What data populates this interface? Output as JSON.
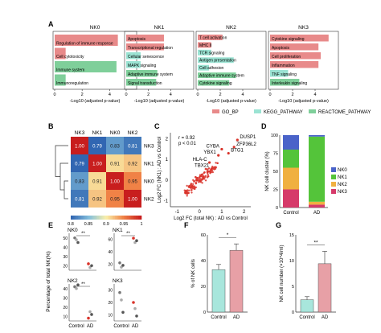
{
  "panel_letters": {
    "A": "A",
    "B": "B",
    "C": "C",
    "D": "D",
    "E": "E",
    "F": "F",
    "G": "G"
  },
  "colors": {
    "go": "#e88a8a",
    "kegg": "#9be3d3",
    "reactome": "#7fcf9a",
    "red": "#d9342b",
    "pink": "#e7a0a6",
    "teal": "#a8e6dc",
    "nk0": "#4a63c9",
    "nk1": "#54c43a",
    "nk2": "#f0b040",
    "nk3": "#d63a6a"
  },
  "panel_a": {
    "xlabel": "-Log10 (adjusted p-value)",
    "legend": [
      "GO_BP",
      "KEGG_PATHWAY",
      "REACTOME_PATHWAY"
    ],
    "ticks": [
      "0",
      "2",
      "4"
    ],
    "subpanels": [
      {
        "title": "NK0",
        "terms": [
          {
            "label": "Regulation of immune response",
            "value": 4.6,
            "db": "go"
          },
          {
            "label": "Cell cytotoxicity",
            "value": 0.8,
            "db": "go"
          },
          {
            "label": "Immune system",
            "value": 4.5,
            "db": "reactome"
          },
          {
            "label": "Immunoregulation",
            "value": 0.8,
            "db": "reactome"
          }
        ]
      },
      {
        "title": "NK1",
        "terms": [
          {
            "label": "Apoptosis",
            "value": 3.4,
            "db": "go"
          },
          {
            "label": "Transcriptional regulation",
            "value": 3.4,
            "db": "go"
          },
          {
            "label": "Cellular senescence",
            "value": 1.3,
            "db": "kegg"
          },
          {
            "label": "MAPK signaling",
            "value": 1.3,
            "db": "kegg"
          },
          {
            "label": "Adaptive immune system",
            "value": 2.8,
            "db": "reactome"
          },
          {
            "label": "Signal transduction",
            "value": 2.7,
            "db": "reactome"
          }
        ]
      },
      {
        "title": "NK2",
        "terms": [
          {
            "label": "T cell activation",
            "value": 2.2,
            "db": "go"
          },
          {
            "label": "MHC II",
            "value": 1.2,
            "db": "go"
          },
          {
            "label": "TCR signaling",
            "value": 1.2,
            "db": "kegg"
          },
          {
            "label": "Antigen presentation",
            "value": 3.2,
            "db": "kegg"
          },
          {
            "label": "Cell adhesion",
            "value": 1.0,
            "db": "kegg"
          },
          {
            "label": "Adaptive immune system",
            "value": 3.4,
            "db": "reactome"
          },
          {
            "label": "Cytokine signaling",
            "value": 2.8,
            "db": "reactome"
          }
        ]
      },
      {
        "title": "NK3",
        "terms": [
          {
            "label": "Cytokine signaling",
            "value": 5.2,
            "db": "go"
          },
          {
            "label": "Apoptosis",
            "value": 4.3,
            "db": "go"
          },
          {
            "label": "Cell proliferation",
            "value": 4.5,
            "db": "go"
          },
          {
            "label": "Inflammation",
            "value": 4.3,
            "db": "go"
          },
          {
            "label": "TNF signaling",
            "value": 1.6,
            "db": "kegg"
          },
          {
            "label": "Interleukin signaling",
            "value": 2.6,
            "db": "reactome"
          }
        ]
      }
    ]
  },
  "chart_data": [
    {
      "type": "heatmap",
      "panel": "B",
      "columns": [
        "NK3",
        "NK1",
        "NK0",
        "NK2"
      ],
      "rows": [
        "NK3",
        "NK1",
        "NK0",
        "NK2"
      ],
      "values": [
        [
          1.0,
          0.79,
          0.83,
          0.81
        ],
        [
          0.79,
          1.0,
          0.91,
          0.92
        ],
        [
          0.83,
          0.91,
          1.0,
          0.95
        ],
        [
          0.81,
          0.92,
          0.95,
          1.0
        ]
      ],
      "labels": [
        [
          "1.00",
          "0.79",
          "0.83",
          "0.81"
        ],
        [
          "0.79",
          "1.00",
          "0.91",
          "0.92"
        ],
        [
          "0.83",
          "0.91",
          "1.00",
          "0.95"
        ],
        [
          "0.81",
          "0.92",
          "0.95",
          "1.00"
        ]
      ],
      "colorbar_ticks": [
        "0.8",
        "0.85",
        "0.9",
        "0.95",
        "1"
      ]
    },
    {
      "type": "scatter",
      "panel": "C",
      "xlabel": "Log2 FC (total NK) : AD vs Control",
      "ylabel": "Log2 FC (NK1) : AD vs Control",
      "annotation": [
        "r = 0.92",
        "p < 0.01"
      ],
      "xticks": [
        "-1",
        "0",
        "1",
        "2"
      ],
      "yticks": [
        "-1",
        "0",
        "1",
        "2"
      ],
      "xlim": [
        -1.3,
        2.3
      ],
      "ylim": [
        -1.3,
        2.3
      ],
      "labeled_points": [
        {
          "label": "DUSP1",
          "x": 1.7,
          "y": 1.95
        },
        {
          "label": "ZFP36L2",
          "x": 1.55,
          "y": 1.6
        },
        {
          "label": "CYBA",
          "x": 1.0,
          "y": 1.5
        },
        {
          "label": "BTG1",
          "x": 1.3,
          "y": 1.3
        },
        {
          "label": "YBX1",
          "x": 0.85,
          "y": 1.2
        },
        {
          "label": "HLA-C",
          "x": 0.45,
          "y": 0.85
        },
        {
          "label": "TBX21",
          "x": 0.55,
          "y": 0.55
        }
      ]
    },
    {
      "type": "bar",
      "panel": "D",
      "stacked": true,
      "ylabel": "NK cell cluster (%)",
      "categories": [
        "Control",
        "AD"
      ],
      "ylim": [
        0,
        100
      ],
      "yticks": [
        "0",
        "25",
        "50",
        "75",
        "100"
      ],
      "series": [
        {
          "name": "NK0",
          "values": [
            20,
            2
          ]
        },
        {
          "name": "NK1",
          "values": [
            25,
            90
          ]
        },
        {
          "name": "NK2",
          "values": [
            30,
            4
          ]
        },
        {
          "name": "NK3",
          "values": [
            25,
            4
          ]
        }
      ]
    },
    {
      "type": "scatter",
      "panel": "E",
      "ylabel": "Percentage of total NK(%)",
      "categories": [
        "Control",
        "AD"
      ],
      "subplots": [
        {
          "title": "NK0",
          "significance": "**",
          "yticks": [
            "20",
            "30",
            "40",
            "50"
          ],
          "ylim": [
            15,
            55
          ],
          "control": [
            50,
            48,
            45
          ],
          "ad": [
            22,
            18,
            20
          ]
        },
        {
          "title": "NK1",
          "significance": "**",
          "yticks": [
            "20",
            "40",
            "60"
          ],
          "ylim": [
            10,
            70
          ],
          "control": [
            22,
            15,
            18
          ],
          "ad": [
            62,
            55,
            58
          ]
        },
        {
          "title": "NK2",
          "significance": "**",
          "yticks": [
            "10",
            "20",
            "30",
            "40"
          ],
          "ylim": [
            5,
            45
          ],
          "control": [
            42,
            40,
            44
          ],
          "ad": [
            8,
            15,
            12
          ]
        },
        {
          "title": "NK3",
          "significance": "",
          "yticks": [
            "10",
            "20",
            "30"
          ],
          "ylim": [
            5,
            35
          ],
          "control": [
            28,
            22,
            12
          ],
          "ad": [
            20,
            15,
            9
          ]
        }
      ]
    },
    {
      "type": "bar",
      "panel": "F",
      "ylabel": "% of NK cells",
      "categories": [
        "Control",
        "AD"
      ],
      "values": [
        33,
        48
      ],
      "errors": [
        4,
        5
      ],
      "ylim": [
        0,
        60
      ],
      "yticks": [
        "0",
        "20",
        "40",
        "60"
      ],
      "significance": "*"
    },
    {
      "type": "bar",
      "panel": "G",
      "ylabel": "NK cell number (×10^4/ml)",
      "categories": [
        "Control",
        "AD"
      ],
      "values": [
        2.4,
        9.4
      ],
      "errors": [
        0.6,
        2.4
      ],
      "ylim": [
        0,
        15
      ],
      "yticks": [
        "0",
        "5",
        "10",
        "15"
      ],
      "significance": "**"
    }
  ]
}
